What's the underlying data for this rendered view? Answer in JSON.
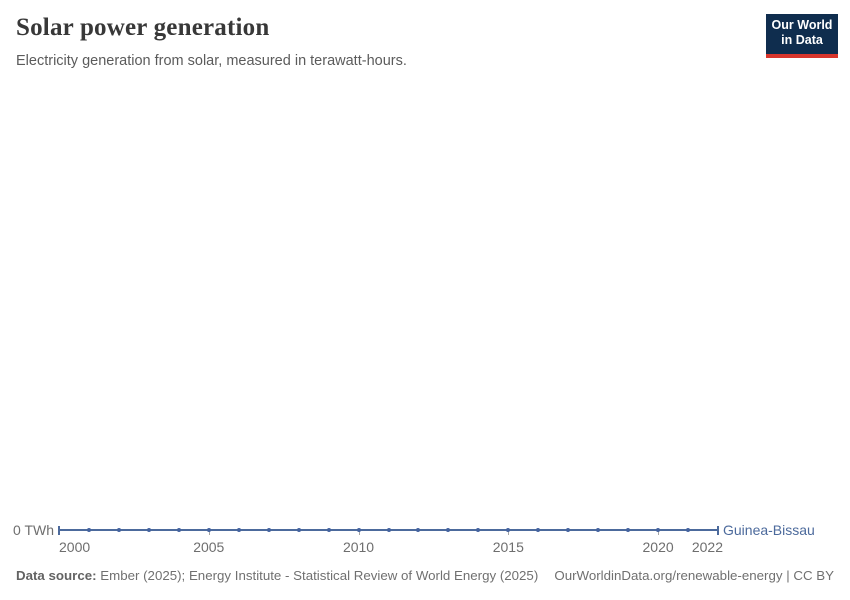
{
  "header": {
    "title": "Solar power generation",
    "subtitle": "Electricity generation from solar, measured in terawatt-hours.",
    "logo": {
      "line1": "Our World",
      "line2": "in Data"
    }
  },
  "colors": {
    "line": "#4C6A9C",
    "point": "#44639F",
    "entity_label": "#4C6A9C",
    "logo_bg": "#0F2D4E",
    "logo_red": "#D8352C"
  },
  "chart": {
    "y_zero_label": "0 TWh"
  },
  "chart_data": {
    "type": "line",
    "title": "Solar power generation",
    "subtitle": "Electricity generation from solar, measured in terawatt-hours.",
    "unit": "TWh",
    "xlabel": "",
    "ylabel": "terawatt-hours",
    "ylim": [
      0,
      0
    ],
    "grid": false,
    "legend_position": "end-of-line",
    "x_ticks": [
      2000,
      2005,
      2010,
      2015,
      2020,
      2022
    ],
    "series": [
      {
        "name": "Guinea-Bissau",
        "x": [
          2000,
          2001,
          2002,
          2003,
          2004,
          2005,
          2006,
          2007,
          2008,
          2009,
          2010,
          2011,
          2012,
          2013,
          2014,
          2015,
          2016,
          2017,
          2018,
          2019,
          2020,
          2021,
          2022
        ],
        "values": [
          0,
          0,
          0,
          0,
          0,
          0,
          0,
          0,
          0,
          0,
          0,
          0,
          0,
          0,
          0,
          0,
          0,
          0,
          0,
          0,
          0,
          0,
          0
        ]
      }
    ]
  },
  "footer": {
    "source_label": "Data source:",
    "source_text": " Ember (2025); Energy Institute - Statistical Review of World Energy (2025)",
    "attribution": "OurWorldinData.org/renewable-energy | CC BY"
  }
}
